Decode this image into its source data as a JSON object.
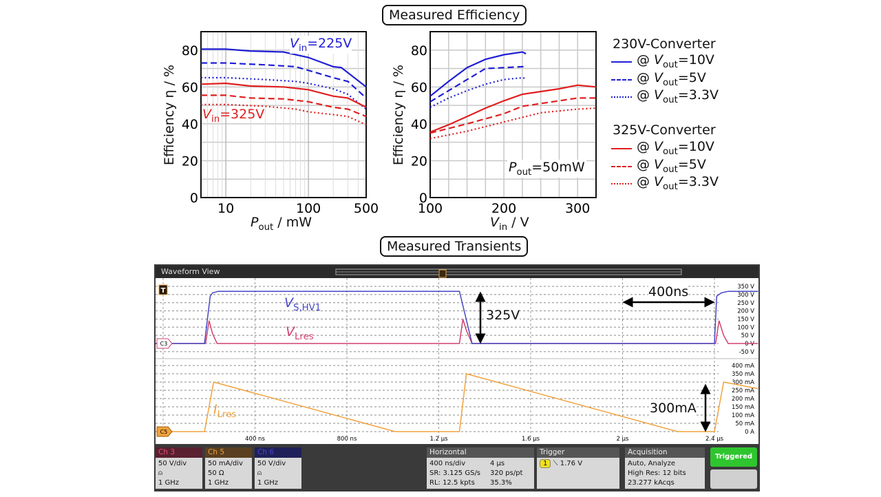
{
  "titles": {
    "efficiency": "Measured Efficiency",
    "transients": "Measured Transients"
  },
  "colors": {
    "c230": "#1f1fd6",
    "c325": "#e01f1f",
    "ch3": "#d0406e",
    "ch5": "#f0a23c",
    "ch6": "#4646c4"
  },
  "legend": {
    "group1": "230V-Converter",
    "group2": "325V-Converter",
    "items": [
      {
        "prefix": "@ ",
        "var": "V",
        "sub": "out",
        "value": "=10V",
        "style": "solid"
      },
      {
        "prefix": "@ ",
        "var": "V",
        "sub": "out",
        "value": "=5V",
        "style": "dashed"
      },
      {
        "prefix": "@ ",
        "var": "V",
        "sub": "out",
        "value": "=3.3V",
        "style": "dotted"
      }
    ]
  },
  "chart_data": [
    {
      "type": "line",
      "xscale": "log",
      "xlim": [
        5,
        500
      ],
      "ylim": [
        0,
        90
      ],
      "xticks": [
        10,
        100,
        500
      ],
      "yticks": [
        0,
        20,
        40,
        60,
        80
      ],
      "xlabel": {
        "var": "P",
        "sub": "out",
        "rest": " / mW"
      },
      "ylabel": "Efficiency η / %",
      "grid": true,
      "annotations": [
        {
          "var": "V",
          "sub": "in",
          "text": "=225V",
          "color": "#1f1fd6"
        },
        {
          "var": "V",
          "sub": "in",
          "text": "=325V",
          "color": "#e01f1f"
        }
      ],
      "series": [
        {
          "group": "230V",
          "style": "solid",
          "x": [
            5,
            10,
            20,
            50,
            100,
            200,
            250,
            500
          ],
          "y": [
            80.5,
            80.5,
            79.5,
            79,
            76,
            71,
            70.5,
            60
          ]
        },
        {
          "group": "230V",
          "style": "dashed",
          "x": [
            5,
            10,
            30,
            70,
            100,
            200,
            300,
            500
          ],
          "y": [
            73,
            73,
            72,
            71,
            69,
            65,
            63,
            54
          ]
        },
        {
          "group": "230V",
          "style": "dotted",
          "x": [
            5,
            10,
            30,
            70,
            100,
            200,
            300,
            500
          ],
          "y": [
            65,
            65,
            64,
            63,
            62,
            59,
            56,
            48
          ]
        },
        {
          "group": "325V",
          "style": "solid",
          "x": [
            5,
            10,
            20,
            50,
            100,
            200,
            300,
            500
          ],
          "y": [
            61.5,
            62,
            60.5,
            60,
            58.5,
            55,
            54,
            49
          ]
        },
        {
          "group": "325V",
          "style": "dashed",
          "x": [
            5,
            10,
            20,
            50,
            100,
            200,
            300,
            500
          ],
          "y": [
            55.5,
            55.5,
            54,
            53.5,
            52,
            49,
            48,
            44
          ]
        },
        {
          "group": "325V",
          "style": "dotted",
          "x": [
            5,
            10,
            30,
            70,
            100,
            200,
            300,
            500
          ],
          "y": [
            50.5,
            50.5,
            49.5,
            48,
            46.5,
            45,
            44,
            39.5
          ]
        }
      ]
    },
    {
      "type": "line",
      "xscale": "linear",
      "xlim": [
        100,
        325
      ],
      "ylim": [
        0,
        90
      ],
      "xticks": [
        100,
        200,
        300
      ],
      "yticks": [
        0,
        20,
        40,
        60,
        80
      ],
      "xlabel": {
        "var": "V",
        "sub": "in",
        "rest": " / V"
      },
      "ylabel": "Efficiency η / %",
      "grid": true,
      "annotations": [
        {
          "var": "P",
          "sub": "out",
          "text": "=50mW",
          "color": "#111111"
        }
      ],
      "series": [
        {
          "group": "230V",
          "style": "solid",
          "x": [
            100,
            125,
            150,
            175,
            200,
            225,
            230
          ],
          "y": [
            55,
            63,
            70.5,
            75,
            77.5,
            79,
            78
          ]
        },
        {
          "group": "230V",
          "style": "dashed",
          "x": [
            100,
            125,
            150,
            175,
            225,
            230
          ],
          "y": [
            52,
            58,
            64,
            70,
            71,
            71
          ]
        },
        {
          "group": "230V",
          "style": "dotted",
          "x": [
            100,
            125,
            150,
            175,
            200,
            225,
            230
          ],
          "y": [
            49,
            54,
            58,
            61.5,
            64,
            65,
            64.5
          ]
        },
        {
          "group": "325V",
          "style": "solid",
          "x": [
            100,
            125,
            150,
            175,
            200,
            225,
            250,
            275,
            300,
            325
          ],
          "y": [
            35.5,
            39.5,
            44,
            48.5,
            52.5,
            56,
            57.5,
            59,
            61,
            60
          ]
        },
        {
          "group": "325V",
          "style": "dashed",
          "x": [
            100,
            150,
            200,
            225,
            250,
            300,
            325
          ],
          "y": [
            35,
            40,
            45.5,
            49.5,
            51,
            54,
            54
          ]
        },
        {
          "group": "325V",
          "style": "dotted",
          "x": [
            100,
            150,
            200,
            225,
            250,
            300,
            325
          ],
          "y": [
            32,
            36,
            41,
            43.5,
            46,
            48,
            48.5
          ]
        }
      ]
    }
  ],
  "scope": {
    "header": "Waveform View",
    "time_labels": [
      "400 ns",
      "800 ns",
      "1.2 µs",
      "1.6 µs",
      "2 µs",
      "2.4 µs"
    ],
    "volt_labels": [
      "350 V",
      "300 V",
      "250 V",
      "200 V",
      "150 V",
      "100 V",
      "50 V",
      "0 V",
      "-50 V"
    ],
    "amp_labels": [
      "400 mA",
      "350 mA",
      "300 mA",
      "250 mA",
      "200 mA",
      "150 mA",
      "100 mA",
      "50 mA",
      "0 A"
    ],
    "trigger_marker": "T",
    "ch3_marker": "C3",
    "ch5_marker": "C5",
    "traces": {
      "vs_hv1_V": {
        "t_ns": [
          -33,
          180,
          205,
          215,
          240,
          1290,
          1345,
          2400,
          2410,
          2430,
          2460,
          2590
        ],
        "v": [
          0,
          0,
          290,
          310,
          320,
          320,
          0,
          0,
          290,
          310,
          320,
          320
        ]
      },
      "vlres_V": {
        "t_ns": [
          -33,
          185,
          200,
          215,
          235,
          1290,
          1305,
          1320,
          1345,
          2405,
          2420,
          2440,
          2460,
          2590
        ],
        "v": [
          0,
          0,
          140,
          60,
          0,
          0,
          150,
          80,
          0,
          0,
          140,
          50,
          0,
          0
        ]
      },
      "ilres_mA": {
        "t_ns": [
          -33,
          180,
          220,
          1010,
          1290,
          1320,
          2240,
          2400,
          2440,
          2590
        ],
        "v": [
          0,
          0,
          300,
          0,
          0,
          350,
          0,
          0,
          300,
          260
        ]
      }
    },
    "labels": {
      "vs": {
        "var": "V",
        "sub": "S,HV1"
      },
      "vl": {
        "var": "V",
        "sub": "Lres"
      },
      "il": {
        "var": "I",
        "sub": "Lres"
      },
      "v325": "325V",
      "t400": "400ns",
      "i300": "300mA"
    },
    "panels": {
      "ch3": {
        "title": "Ch 3",
        "l1": "50 V/div",
        "l3": "1 GHz"
      },
      "ch5": {
        "title": "Ch 5",
        "l1": "50 mA/div",
        "l2": "50 Ω",
        "l3": "1 GHz"
      },
      "ch6": {
        "title": "Ch 6",
        "l1": "50 V/div",
        "l3": "1 GHz"
      },
      "horizontal": {
        "title": "Horizontal",
        "r1a": "400 ns/div",
        "r1b": "4 µs",
        "r2a": "SR: 3.125 GS/s",
        "r2b": "320 ps/pt",
        "r3a": "RL: 12.5 kpts",
        "r3b": "35.3%"
      },
      "trigger": {
        "title": "Trigger",
        "source": "1",
        "level": "1.76 V"
      },
      "acquisition": {
        "title": "Acquisition",
        "r1": "Auto,    Analyze",
        "r2": "High Res: 12 bits",
        "r3": "23.277 kAcqs"
      },
      "status": "Triggered"
    }
  }
}
